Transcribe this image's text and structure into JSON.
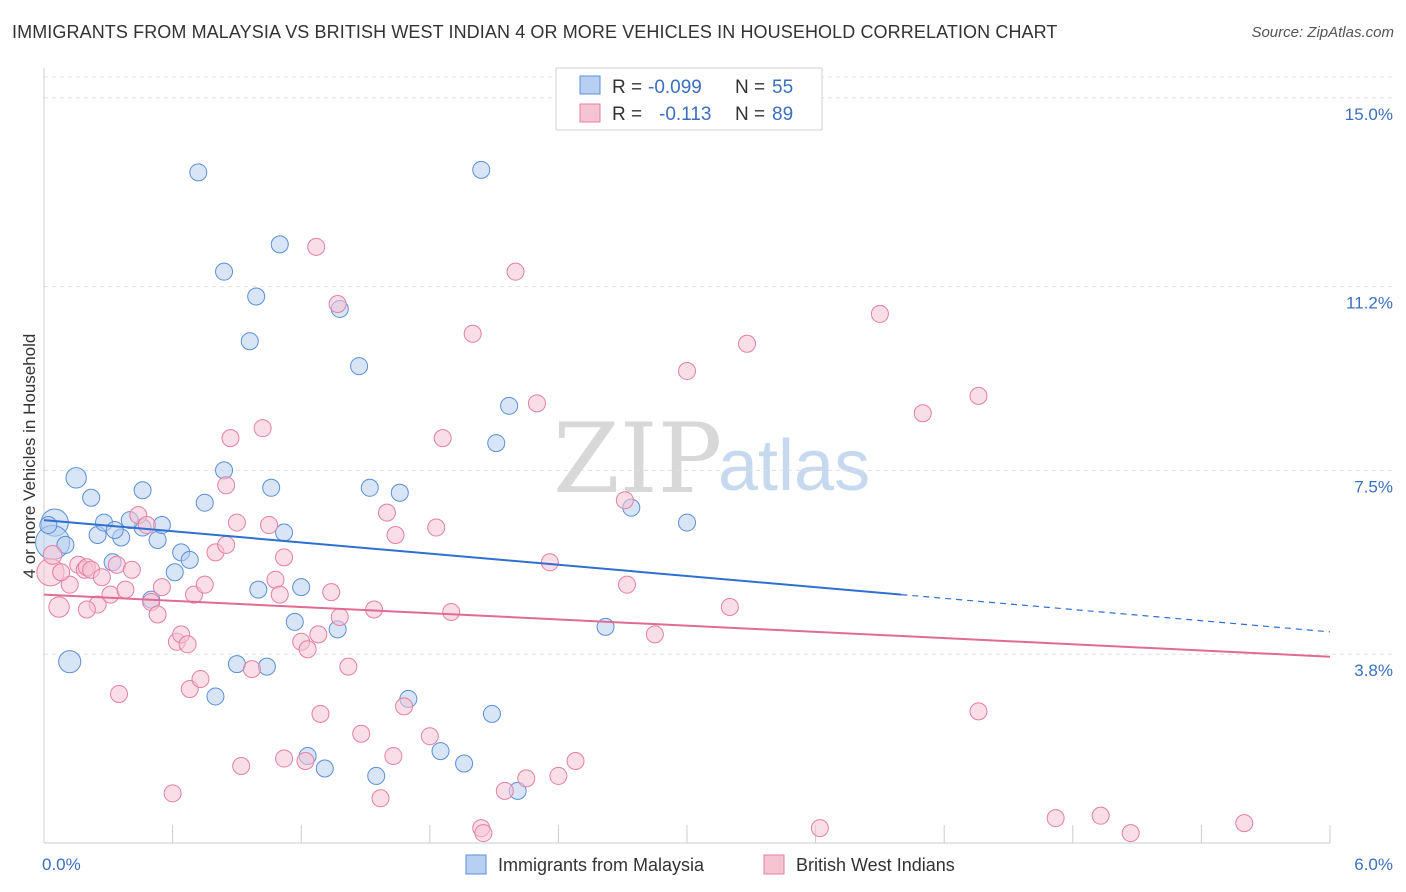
{
  "title": "IMMIGRANTS FROM MALAYSIA VS BRITISH WEST INDIAN 4 OR MORE VEHICLES IN HOUSEHOLD CORRELATION CHART",
  "source": "Source: ZipAtlas.com",
  "colors": {
    "blue": "#5b8fd8",
    "blue_fill": "#b7cff1",
    "blue_line": "#2f6fcf",
    "pink": "#e57fa1",
    "pink_fill": "#f6c3d3",
    "pink_line": "#e06b95",
    "tick": "#3a6fc0"
  },
  "legend": {
    "r_label": "R =",
    "n_label": "N =",
    "rows": [
      {
        "r": "-0.099",
        "n": "55"
      },
      {
        "r": "-0.113",
        "n": "89"
      }
    ]
  },
  "bottom_legend": [
    "Immigrants from Malaysia",
    "British West Indians"
  ],
  "watermark": {
    "zip": "ZIP",
    "atlas": "atlas"
  },
  "chart_data": {
    "type": "scatter",
    "title": "IMMIGRANTS FROM MALAYSIA VS BRITISH WEST INDIAN 4 OR MORE VEHICLES IN HOUSEHOLD CORRELATION CHART",
    "xlabel": "",
    "ylabel": "4 or more Vehicles in Household",
    "xlim": [
      0,
      6.0
    ],
    "ylim": [
      0,
      15.6
    ],
    "x_tick_labels": [
      "0.0%",
      "6.0%"
    ],
    "y_ticks": [
      3.8,
      7.5,
      11.2,
      15.0
    ],
    "y_tick_labels": [
      "3.8%",
      "7.5%",
      "11.2%",
      "15.0%"
    ],
    "grid": true,
    "legend_position": "top-center",
    "series": [
      {
        "name": "Immigrants from Malaysia",
        "r": -0.099,
        "n": 55,
        "trend": {
          "x0": 0.0,
          "y0": 6.5,
          "x1": 4.0,
          "y1": 5.0,
          "dashed_to_x": 6.0,
          "dashed_to_y": 4.25
        },
        "points": [
          [
            0.05,
            6.45,
            1.6
          ],
          [
            0.04,
            6.05,
            2.0
          ],
          [
            0.15,
            7.35,
            1.2
          ],
          [
            0.22,
            6.95,
            1.0
          ],
          [
            0.1,
            6.0,
            1.0
          ],
          [
            0.25,
            6.2,
            1.0
          ],
          [
            0.28,
            6.45,
            1.0
          ],
          [
            0.36,
            6.15,
            1.0
          ],
          [
            0.46,
            6.35,
            1.0
          ],
          [
            0.4,
            6.5,
            1.0
          ],
          [
            0.46,
            7.1,
            1.0
          ],
          [
            0.53,
            6.1,
            1.0
          ],
          [
            0.64,
            5.85,
            1.0
          ],
          [
            0.61,
            5.45,
            1.0
          ],
          [
            0.68,
            5.7,
            1.0
          ],
          [
            0.75,
            6.85,
            1.0
          ],
          [
            0.84,
            7.5,
            1.0
          ],
          [
            0.32,
            5.65,
            1.0
          ],
          [
            0.5,
            4.9,
            1.0
          ],
          [
            0.12,
            3.65,
            1.3
          ],
          [
            0.72,
            13.5,
            1.0
          ],
          [
            0.84,
            11.5,
            1.0
          ],
          [
            0.96,
            10.1,
            1.0
          ],
          [
            0.99,
            11.0,
            1.0
          ],
          [
            1.1,
            12.05,
            1.0
          ],
          [
            1.12,
            6.25,
            1.0
          ],
          [
            1.06,
            7.15,
            1.0
          ],
          [
            1.2,
            5.15,
            1.0
          ],
          [
            1.17,
            4.45,
            1.0
          ],
          [
            1.38,
            10.75,
            1.0
          ],
          [
            1.47,
            9.6,
            1.0
          ],
          [
            1.52,
            7.15,
            1.0
          ],
          [
            1.66,
            7.05,
            1.0
          ],
          [
            1.37,
            4.3,
            1.0
          ],
          [
            1.85,
            1.85,
            1.0
          ],
          [
            2.04,
            13.55,
            1.0
          ],
          [
            2.17,
            8.8,
            1.0
          ],
          [
            2.11,
            8.05,
            1.0
          ],
          [
            1.0,
            5.1,
            1.0
          ],
          [
            0.9,
            3.6,
            1.0
          ],
          [
            1.04,
            3.55,
            1.0
          ],
          [
            0.8,
            2.95,
            1.0
          ],
          [
            1.23,
            1.75,
            1.0
          ],
          [
            1.31,
            1.5,
            1.0
          ],
          [
            1.55,
            1.35,
            1.0
          ],
          [
            1.7,
            2.9,
            1.0
          ],
          [
            1.96,
            1.6,
            1.0
          ],
          [
            2.09,
            2.6,
            1.0
          ],
          [
            2.21,
            1.05,
            1.0
          ],
          [
            2.74,
            6.75,
            1.0
          ],
          [
            3.0,
            6.45,
            1.0
          ],
          [
            2.62,
            4.35,
            1.0
          ],
          [
            0.02,
            6.4,
            1.0
          ],
          [
            0.33,
            6.3,
            1.0
          ],
          [
            0.55,
            6.4,
            1.0
          ]
        ]
      },
      {
        "name": "British West Indians",
        "r": -0.113,
        "n": 89,
        "trend": {
          "x0": 0.0,
          "y0": 5.0,
          "x1": 6.0,
          "y1": 3.75
        },
        "points": [
          [
            0.03,
            5.45,
            1.6
          ],
          [
            0.07,
            4.75,
            1.2
          ],
          [
            0.04,
            5.8,
            1.1
          ],
          [
            0.12,
            5.2,
            1.0
          ],
          [
            0.08,
            5.45,
            1.0
          ],
          [
            0.16,
            5.6,
            1.0
          ],
          [
            0.19,
            5.5,
            1.0
          ],
          [
            0.2,
            5.55,
            1.0
          ],
          [
            0.22,
            5.5,
            1.0
          ],
          [
            0.27,
            5.35,
            1.0
          ],
          [
            0.25,
            4.8,
            1.0
          ],
          [
            0.2,
            4.7,
            1.0
          ],
          [
            0.31,
            5.0,
            1.0
          ],
          [
            0.34,
            5.6,
            1.0
          ],
          [
            0.38,
            5.1,
            1.0
          ],
          [
            0.41,
            5.5,
            1.0
          ],
          [
            0.44,
            6.6,
            1.0
          ],
          [
            0.48,
            6.4,
            1.0
          ],
          [
            0.5,
            4.85,
            1.0
          ],
          [
            0.53,
            4.6,
            1.0
          ],
          [
            0.55,
            5.15,
            1.0
          ],
          [
            0.62,
            4.05,
            1.0
          ],
          [
            0.64,
            4.2,
            1.0
          ],
          [
            0.67,
            4.0,
            1.0
          ],
          [
            0.7,
            5.0,
            1.0
          ],
          [
            0.75,
            5.2,
            1.0
          ],
          [
            0.8,
            5.85,
            1.0
          ],
          [
            0.85,
            6.0,
            1.0
          ],
          [
            0.87,
            8.15,
            1.0
          ],
          [
            0.9,
            6.45,
            1.0
          ],
          [
            0.85,
            7.2,
            1.0
          ],
          [
            1.02,
            8.35,
            1.0
          ],
          [
            1.05,
            6.4,
            1.0
          ],
          [
            1.08,
            5.3,
            1.0
          ],
          [
            1.1,
            5.0,
            1.0
          ],
          [
            1.12,
            5.75,
            1.0
          ],
          [
            1.2,
            4.05,
            1.0
          ],
          [
            1.23,
            3.9,
            1.0
          ],
          [
            1.28,
            4.2,
            1.0
          ],
          [
            1.34,
            5.05,
            1.0
          ],
          [
            1.38,
            4.55,
            1.0
          ],
          [
            1.42,
            3.55,
            1.0
          ],
          [
            1.48,
            2.2,
            1.0
          ],
          [
            1.27,
            12.0,
            1.0
          ],
          [
            1.37,
            10.85,
            1.0
          ],
          [
            1.54,
            4.7,
            1.0
          ],
          [
            1.6,
            6.65,
            1.0
          ],
          [
            1.64,
            6.2,
            1.0
          ],
          [
            1.68,
            2.75,
            1.0
          ],
          [
            1.8,
            2.15,
            1.0
          ],
          [
            1.86,
            8.15,
            1.0
          ],
          [
            1.83,
            6.35,
            1.0
          ],
          [
            1.9,
            4.65,
            1.0
          ],
          [
            2.0,
            10.25,
            1.0
          ],
          [
            2.2,
            11.5,
            1.0
          ],
          [
            2.3,
            8.85,
            1.0
          ],
          [
            2.36,
            5.65,
            1.0
          ],
          [
            2.4,
            1.35,
            1.0
          ],
          [
            2.48,
            1.65,
            1.0
          ],
          [
            2.71,
            6.9,
            1.0
          ],
          [
            2.72,
            5.2,
            1.0
          ],
          [
            2.85,
            4.2,
            1.0
          ],
          [
            3.0,
            9.5,
            1.0
          ],
          [
            3.2,
            4.75,
            1.0
          ],
          [
            3.28,
            10.05,
            1.0
          ],
          [
            3.9,
            10.65,
            1.0
          ],
          [
            4.1,
            8.65,
            1.0
          ],
          [
            4.36,
            9.0,
            1.0
          ],
          [
            4.36,
            2.65,
            1.0
          ],
          [
            0.6,
            1.0,
            1.0
          ],
          [
            0.92,
            1.55,
            1.0
          ],
          [
            1.12,
            1.7,
            1.0
          ],
          [
            1.22,
            1.65,
            1.0
          ],
          [
            1.57,
            0.9,
            1.0
          ],
          [
            1.63,
            1.75,
            1.0
          ],
          [
            2.04,
            0.3,
            1.0
          ],
          [
            2.15,
            1.05,
            1.0
          ],
          [
            2.25,
            1.3,
            1.0
          ],
          [
            0.35,
            3.0,
            1.0
          ],
          [
            0.68,
            3.1,
            1.0
          ],
          [
            0.73,
            3.3,
            1.0
          ],
          [
            0.97,
            3.5,
            1.0
          ],
          [
            1.29,
            2.6,
            1.0
          ],
          [
            2.05,
            0.2,
            1.0
          ],
          [
            3.62,
            0.3,
            1.0
          ],
          [
            4.72,
            0.5,
            1.0
          ],
          [
            4.93,
            0.55,
            1.0
          ],
          [
            5.07,
            0.2,
            1.0
          ],
          [
            5.6,
            0.4,
            1.0
          ]
        ]
      }
    ]
  }
}
